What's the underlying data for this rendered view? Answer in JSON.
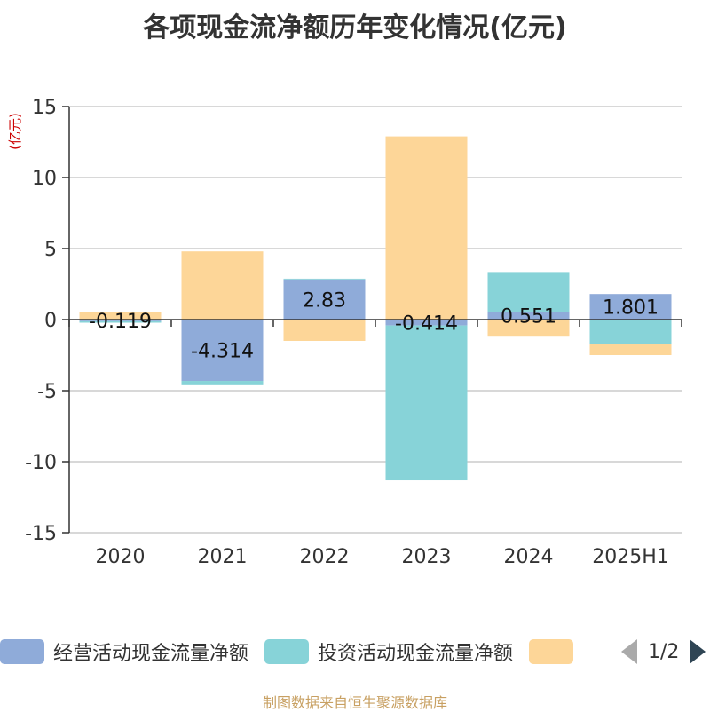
{
  "title": "各项现金流净额历年变化情况(亿元)",
  "source": "制图数据来自恒生聚源数据库",
  "legend_page": "1/2",
  "colors": {
    "operating": "#8fabd9",
    "investing": "#87d3d8",
    "financing": "#fdd698",
    "axis": "#333333",
    "grid": "#cccccc",
    "unit": "#cc0000"
  },
  "chart_data": {
    "type": "bar",
    "stacked": true,
    "title": "各项现金流净额历年变化情况(亿元)",
    "ylabel": "(亿元)",
    "xlabel": "",
    "ylim": [
      -15,
      15
    ],
    "yticks": [
      15,
      10,
      5,
      0,
      -5,
      -10,
      -15
    ],
    "categories": [
      "2020",
      "2021",
      "2022",
      "2023",
      "2024",
      "2025H1"
    ],
    "series": [
      {
        "name": "经营活动现金流量净额",
        "color_key": "operating",
        "values": [
          -0.119,
          -4.314,
          2.83,
          -0.414,
          0.551,
          1.801
        ],
        "labels": [
          "-0.119",
          "-4.314",
          "2.83",
          "-0.414",
          "0.551",
          "1.801"
        ]
      },
      {
        "name": "投资活动现金流量净额",
        "color_key": "investing",
        "values": [
          -0.1,
          -0.3,
          0.05,
          -10.9,
          2.8,
          -1.7
        ]
      },
      {
        "name": "",
        "color_key": "financing",
        "values": [
          0.5,
          4.8,
          -1.5,
          12.9,
          -1.2,
          -0.8
        ]
      }
    ]
  }
}
